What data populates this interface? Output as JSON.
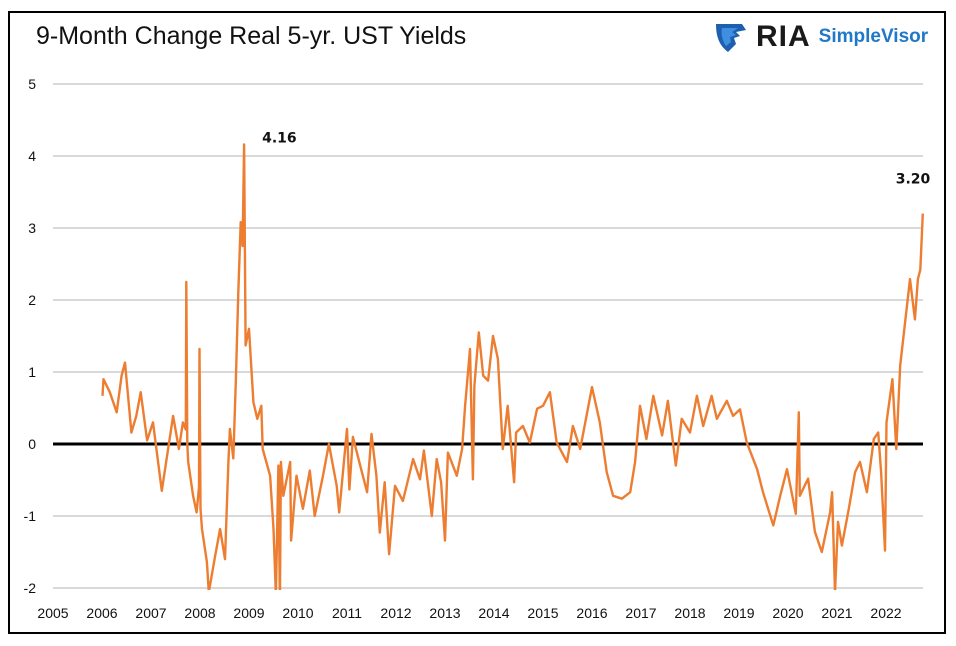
{
  "title": "9-Month Change Real 5-yr. UST Yields",
  "logo": {
    "mark": "RIA",
    "product": "SimpleVisor",
    "icon": "eagle-shield-icon",
    "colors": {
      "mark": "#1a1a1a",
      "product": "#1f78c8"
    }
  },
  "chart_data": {
    "type": "line",
    "title": "9-Month Change Real 5-yr. UST Yields",
    "xlabel": "",
    "ylabel": "",
    "xlim": [
      2005,
      2022.75
    ],
    "ylim": [
      -2,
      5
    ],
    "x_ticks": [
      "2005",
      "2006",
      "2007",
      "2008",
      "2009",
      "2010",
      "2011",
      "2012",
      "2013",
      "2014",
      "2015",
      "2016",
      "2017",
      "2018",
      "2019",
      "2020",
      "2021",
      "2022"
    ],
    "y_ticks": [
      "-2",
      "-1",
      "0",
      "1",
      "2",
      "3",
      "4",
      "5"
    ],
    "grid": "horizontal",
    "zero_line": true,
    "series_color": "#ed7d31",
    "annotations": [
      {
        "x": 2008.9,
        "y": 4.16,
        "text": "4.16"
      },
      {
        "x": 2022.75,
        "y": 3.2,
        "text": "3.20"
      }
    ],
    "points": [
      [
        2006.01,
        0.67
      ],
      [
        2006.03,
        0.9
      ],
      [
        2006.16,
        0.72
      ],
      [
        2006.3,
        0.44
      ],
      [
        2006.4,
        0.95
      ],
      [
        2006.47,
        1.13
      ],
      [
        2006.6,
        0.16
      ],
      [
        2006.7,
        0.39
      ],
      [
        2006.79,
        0.72
      ],
      [
        2006.92,
        0.05
      ],
      [
        2007.04,
        0.3
      ],
      [
        2007.22,
        -0.65
      ],
      [
        2007.35,
        -0.07
      ],
      [
        2007.45,
        0.39
      ],
      [
        2007.57,
        -0.07
      ],
      [
        2007.65,
        0.3
      ],
      [
        2007.71,
        0.2
      ],
      [
        2007.72,
        2.25
      ],
      [
        2007.74,
        0.0
      ],
      [
        2007.76,
        -0.25
      ],
      [
        2007.86,
        -0.72
      ],
      [
        2007.93,
        -0.95
      ],
      [
        2007.98,
        -0.6
      ],
      [
        2007.99,
        1.32
      ],
      [
        2008.01,
        -0.9
      ],
      [
        2008.04,
        -1.18
      ],
      [
        2008.14,
        -1.64
      ],
      [
        2008.18,
        -2.06
      ],
      [
        2008.31,
        -1.55
      ],
      [
        2008.41,
        -1.18
      ],
      [
        2008.51,
        -1.6
      ],
      [
        2008.58,
        -0.25
      ],
      [
        2008.61,
        0.21
      ],
      [
        2008.68,
        -0.2
      ],
      [
        2008.73,
        0.86
      ],
      [
        2008.78,
        2.06
      ],
      [
        2008.83,
        3.08
      ],
      [
        2008.87,
        2.75
      ],
      [
        2008.9,
        4.16
      ],
      [
        2008.93,
        1.37
      ],
      [
        2009.0,
        1.6
      ],
      [
        2009.09,
        0.58
      ],
      [
        2009.17,
        0.35
      ],
      [
        2009.25,
        0.53
      ],
      [
        2009.28,
        -0.07
      ],
      [
        2009.43,
        -0.44
      ],
      [
        2009.5,
        -1.18
      ],
      [
        2009.55,
        -2.1
      ],
      [
        2009.6,
        -0.3
      ],
      [
        2009.63,
        -2.2
      ],
      [
        2009.65,
        -0.25
      ],
      [
        2009.7,
        -0.72
      ],
      [
        2009.84,
        -0.25
      ],
      [
        2009.86,
        -1.34
      ],
      [
        2009.97,
        -0.44
      ],
      [
        2010.1,
        -0.9
      ],
      [
        2010.24,
        -0.37
      ],
      [
        2010.34,
        -1.0
      ],
      [
        2010.51,
        -0.44
      ],
      [
        2010.63,
        0.0
      ],
      [
        2010.79,
        -0.58
      ],
      [
        2010.84,
        -0.95
      ],
      [
        2011.0,
        0.21
      ],
      [
        2011.05,
        -0.63
      ],
      [
        2011.12,
        0.1
      ],
      [
        2011.27,
        -0.3
      ],
      [
        2011.41,
        -0.67
      ],
      [
        2011.5,
        0.14
      ],
      [
        2011.6,
        -0.44
      ],
      [
        2011.67,
        -1.23
      ],
      [
        2011.77,
        -0.53
      ],
      [
        2011.86,
        -1.53
      ],
      [
        2011.98,
        -0.58
      ],
      [
        2012.14,
        -0.79
      ],
      [
        2012.35,
        -0.21
      ],
      [
        2012.49,
        -0.49
      ],
      [
        2012.57,
        -0.09
      ],
      [
        2012.73,
        -1.0
      ],
      [
        2012.83,
        -0.21
      ],
      [
        2012.92,
        -0.53
      ],
      [
        2013.0,
        -1.34
      ],
      [
        2013.06,
        -0.12
      ],
      [
        2013.24,
        -0.44
      ],
      [
        2013.35,
        -0.07
      ],
      [
        2013.41,
        0.53
      ],
      [
        2013.51,
        1.32
      ],
      [
        2013.57,
        -0.49
      ],
      [
        2013.6,
        0.81
      ],
      [
        2013.69,
        1.55
      ],
      [
        2013.78,
        0.95
      ],
      [
        2013.88,
        0.88
      ],
      [
        2013.98,
        1.5
      ],
      [
        2014.08,
        1.18
      ],
      [
        2014.18,
        -0.07
      ],
      [
        2014.28,
        0.53
      ],
      [
        2014.41,
        -0.53
      ],
      [
        2014.45,
        0.16
      ],
      [
        2014.59,
        0.25
      ],
      [
        2014.73,
        0.02
      ],
      [
        2014.88,
        0.49
      ],
      [
        2015.0,
        0.53
      ],
      [
        2015.14,
        0.72
      ],
      [
        2015.28,
        0.02
      ],
      [
        2015.49,
        -0.25
      ],
      [
        2015.61,
        0.25
      ],
      [
        2015.76,
        -0.07
      ],
      [
        2016.0,
        0.79
      ],
      [
        2016.16,
        0.3
      ],
      [
        2016.3,
        -0.39
      ],
      [
        2016.43,
        -0.72
      ],
      [
        2016.61,
        -0.76
      ],
      [
        2016.78,
        -0.67
      ],
      [
        2016.88,
        -0.25
      ],
      [
        2016.98,
        0.53
      ],
      [
        2017.11,
        0.07
      ],
      [
        2017.25,
        0.67
      ],
      [
        2017.43,
        0.12
      ],
      [
        2017.55,
        0.6
      ],
      [
        2017.71,
        -0.3
      ],
      [
        2017.83,
        0.35
      ],
      [
        2018.0,
        0.16
      ],
      [
        2018.14,
        0.67
      ],
      [
        2018.27,
        0.25
      ],
      [
        2018.44,
        0.67
      ],
      [
        2018.55,
        0.35
      ],
      [
        2018.75,
        0.6
      ],
      [
        2018.88,
        0.39
      ],
      [
        2019.02,
        0.48
      ],
      [
        2019.16,
        0.02
      ],
      [
        2019.37,
        -0.35
      ],
      [
        2019.49,
        -0.67
      ],
      [
        2019.7,
        -1.13
      ],
      [
        2019.84,
        -0.72
      ],
      [
        2019.98,
        -0.35
      ],
      [
        2020.1,
        -0.76
      ],
      [
        2020.16,
        -0.97
      ],
      [
        2020.22,
        0.44
      ],
      [
        2020.24,
        -0.72
      ],
      [
        2020.41,
        -0.48
      ],
      [
        2020.55,
        -1.22
      ],
      [
        2020.69,
        -1.5
      ],
      [
        2020.86,
        -0.95
      ],
      [
        2020.9,
        -0.67
      ],
      [
        2020.96,
        -2.06
      ],
      [
        2021.02,
        -1.08
      ],
      [
        2021.1,
        -1.41
      ],
      [
        2021.24,
        -0.9
      ],
      [
        2021.37,
        -0.39
      ],
      [
        2021.47,
        -0.25
      ],
      [
        2021.61,
        -0.67
      ],
      [
        2021.75,
        0.07
      ],
      [
        2021.84,
        0.16
      ],
      [
        2021.9,
        -0.39
      ],
      [
        2021.98,
        -1.48
      ],
      [
        2022.01,
        0.3
      ],
      [
        2022.13,
        0.9
      ],
      [
        2022.21,
        -0.07
      ],
      [
        2022.29,
        1.09
      ],
      [
        2022.39,
        1.69
      ],
      [
        2022.49,
        2.29
      ],
      [
        2022.59,
        1.73
      ],
      [
        2022.65,
        2.29
      ],
      [
        2022.7,
        2.42
      ],
      [
        2022.75,
        3.2
      ]
    ]
  }
}
